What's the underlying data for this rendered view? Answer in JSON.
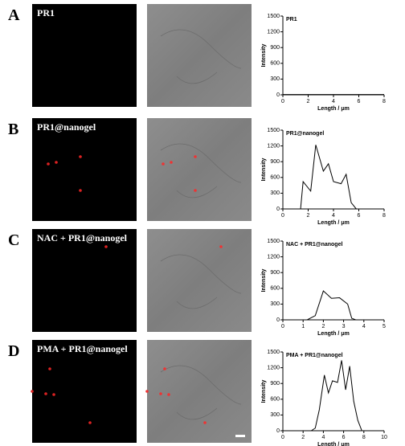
{
  "panels": [
    {
      "letter": "A",
      "image_label": "PR1"
    },
    {
      "letter": "B",
      "image_label": "PR1@nanogel"
    },
    {
      "letter": "C",
      "image_label": "NAC + PR1@nanogel"
    },
    {
      "letter": "D",
      "image_label": "PMA + PR1@nanogel"
    }
  ],
  "chart_data": [
    {
      "type": "line",
      "title": "PR1",
      "x_label": "Length / μm",
      "y_label": "Intensity",
      "color": "#000000",
      "x": [
        0,
        1,
        2,
        3,
        4,
        5,
        6,
        7,
        8
      ],
      "values": [
        5,
        5,
        5,
        5,
        5,
        5,
        5,
        5,
        5
      ],
      "xlim": [
        0,
        8
      ],
      "xticks": [
        0,
        2,
        4,
        6,
        8
      ],
      "ylim": [
        0,
        1500
      ],
      "yticks": [
        0,
        300,
        600,
        900,
        1200,
        1500
      ]
    },
    {
      "type": "line",
      "title": "PR1@nanogel",
      "x_label": "Length / μm",
      "y_label": "Intensity",
      "color": "#000000",
      "x": [
        0,
        1.4,
        1.6,
        2.2,
        2.6,
        3.2,
        3.6,
        4.0,
        4.6,
        5.0,
        5.4,
        5.8,
        8
      ],
      "values": [
        0,
        0,
        520,
        340,
        1220,
        720,
        860,
        520,
        480,
        660,
        120,
        0,
        0
      ],
      "xlim": [
        0,
        8
      ],
      "xticks": [
        0,
        2,
        4,
        6,
        8
      ],
      "ylim": [
        0,
        1500
      ],
      "yticks": [
        0,
        300,
        600,
        900,
        1200,
        1500
      ]
    },
    {
      "type": "line",
      "title": "NAC + PR1@nanogel",
      "x_label": "Length / μm",
      "y_label": "Intensity",
      "color": "#000000",
      "x": [
        0,
        1.2,
        1.6,
        2.0,
        2.4,
        2.8,
        3.2,
        3.4,
        3.6,
        5
      ],
      "values": [
        0,
        0,
        80,
        550,
        410,
        420,
        300,
        30,
        0,
        0
      ],
      "xlim": [
        0,
        5
      ],
      "xticks": [
        0,
        1,
        2,
        3,
        4,
        5
      ],
      "ylim": [
        0,
        1500
      ],
      "yticks": [
        0,
        300,
        600,
        900,
        1200,
        1500
      ]
    },
    {
      "type": "line",
      "title": "PMA + PR1@nanogel",
      "x_label": "Length / μm",
      "y_label": "Intensity",
      "color": "#000000",
      "x": [
        0,
        2.8,
        3.2,
        3.6,
        4.1,
        4.5,
        4.9,
        5.4,
        5.8,
        6.2,
        6.6,
        7.0,
        7.4,
        7.8,
        10
      ],
      "values": [
        0,
        0,
        50,
        400,
        1060,
        720,
        950,
        920,
        1340,
        780,
        1230,
        560,
        200,
        0,
        0
      ],
      "xlim": [
        0,
        10
      ],
      "xticks": [
        0,
        2,
        4,
        6,
        8,
        10
      ],
      "ylim": [
        0,
        1500
      ],
      "yticks": [
        0,
        300,
        600,
        900,
        1200,
        1500
      ]
    }
  ]
}
